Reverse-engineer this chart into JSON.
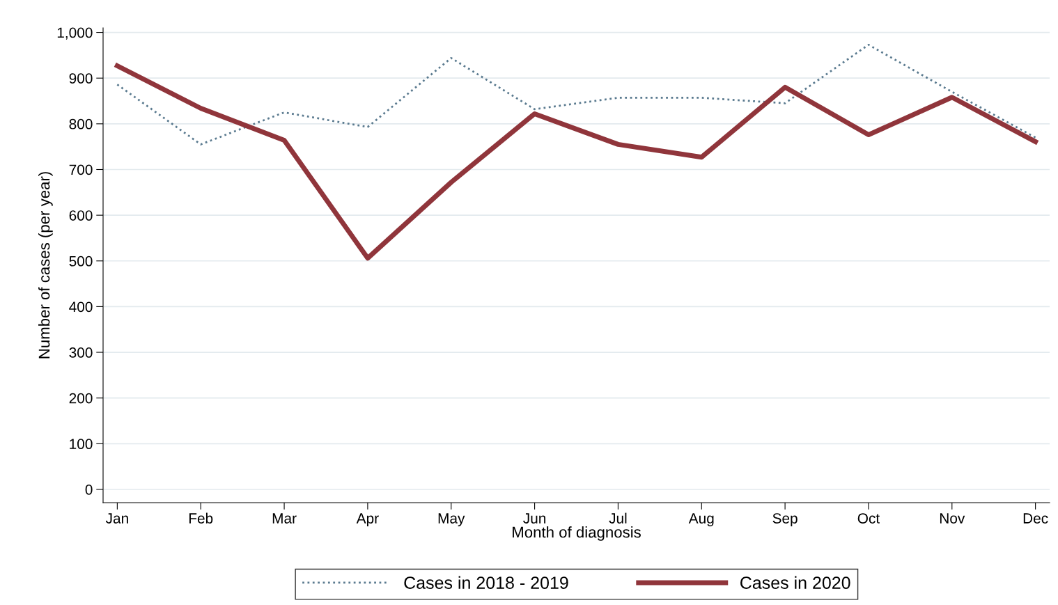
{
  "chart_data": {
    "type": "line",
    "xlabel": "Month of diagnosis",
    "ylabel": "Number of cases (per year)",
    "categories": [
      "Jan",
      "Feb",
      "Mar",
      "Apr",
      "May",
      "Jun",
      "Jul",
      "Aug",
      "Sep",
      "Oct",
      "Nov",
      "Dec"
    ],
    "series": [
      {
        "name": "Cases in 2018 - 2019",
        "color": "#5a7a8f",
        "line_style": "dotted",
        "values": [
          886,
          755,
          825,
          793,
          944,
          832,
          857,
          857,
          845,
          973,
          870,
          770
        ]
      },
      {
        "name": "Cases in 2020",
        "color": "#90353b",
        "line_style": "solid",
        "values": [
          927,
          834,
          764,
          506,
          672,
          822,
          755,
          727,
          880,
          776,
          858,
          761
        ]
      }
    ],
    "ylim": [
      -29,
      1010
    ],
    "yticks": [
      0,
      100,
      200,
      300,
      400,
      500,
      600,
      700,
      800,
      900,
      {
        "value": 1000,
        "label": "1,000"
      }
    ],
    "grid": "y",
    "legend": "bottom",
    "marker": "none"
  }
}
